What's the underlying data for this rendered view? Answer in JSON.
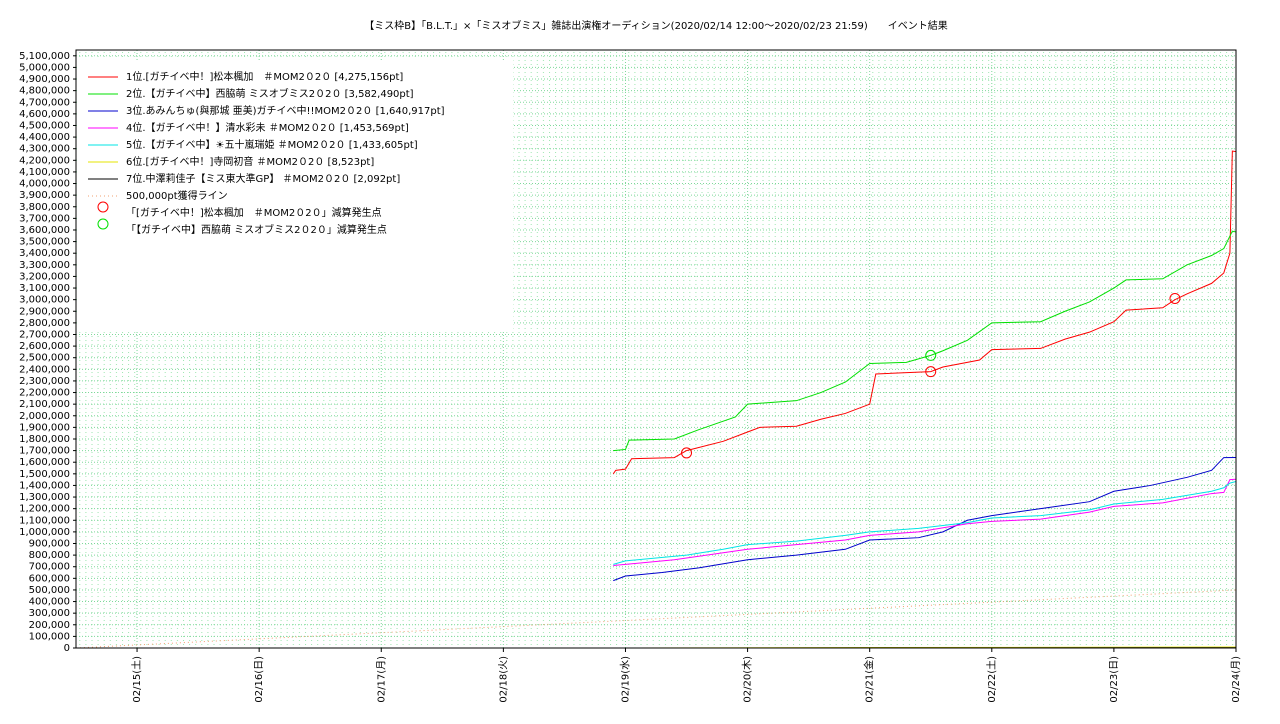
{
  "chart_data": {
    "type": "line",
    "title": "【ミス枠B】「B.L.T.」×「ミスオブミス」雑誌出演権オーディション(2020/02/14 12:00〜2020/02/23 21:59)　　イベント結果",
    "xlim": [
      0.5,
      10.0
    ],
    "xticks": [
      {
        "value": 1,
        "label": "02/15(土)"
      },
      {
        "value": 2,
        "label": "02/16(日)"
      },
      {
        "value": 3,
        "label": "02/17(月)"
      },
      {
        "value": 4,
        "label": "02/18(火)"
      },
      {
        "value": 5,
        "label": "02/19(水)"
      },
      {
        "value": 6,
        "label": "02/20(木)"
      },
      {
        "value": 7,
        "label": "02/21(金)"
      },
      {
        "value": 8,
        "label": "02/22(土)"
      },
      {
        "value": 9,
        "label": "02/23(日)"
      },
      {
        "value": 10,
        "label": "02/24(月)"
      }
    ],
    "ylim": [
      0,
      5150000
    ],
    "yticks": [
      0,
      {
        "value": 100000,
        "label": "100,000"
      },
      {
        "value": 200000,
        "label": "200,000"
      },
      {
        "value": 300000,
        "label": "300,000"
      },
      {
        "value": 400000,
        "label": "400,000"
      },
      {
        "value": 500000,
        "label": "500,000"
      },
      {
        "value": 600000,
        "label": "600,000"
      },
      {
        "value": 700000,
        "label": "700,000"
      },
      {
        "value": 800000,
        "label": "800,000"
      },
      {
        "value": 900000,
        "label": "900,000"
      },
      {
        "value": 1000000,
        "label": "1,000,000"
      },
      {
        "value": 1100000,
        "label": "1,100,000"
      },
      {
        "value": 1200000,
        "label": "1,200,000"
      },
      {
        "value": 1300000,
        "label": "1,300,000"
      },
      {
        "value": 1400000,
        "label": "1,400,000"
      },
      {
        "value": 1500000,
        "label": "1,500,000"
      },
      {
        "value": 1600000,
        "label": "1,600,000"
      },
      {
        "value": 1700000,
        "label": "1,700,000"
      },
      {
        "value": 1800000,
        "label": "1,800,000"
      },
      {
        "value": 1900000,
        "label": "1,900,000"
      },
      {
        "value": 2000000,
        "label": "2,000,000"
      },
      {
        "value": 2100000,
        "label": "2,100,000"
      },
      {
        "value": 2200000,
        "label": "2,200,000"
      },
      {
        "value": 2300000,
        "label": "2,300,000"
      },
      {
        "value": 2400000,
        "label": "2,400,000"
      },
      {
        "value": 2500000,
        "label": "2,500,000"
      },
      {
        "value": 2600000,
        "label": "2,600,000"
      },
      {
        "value": 2700000,
        "label": "2,700,000"
      },
      {
        "value": 2800000,
        "label": "2,800,000"
      },
      {
        "value": 2900000,
        "label": "2,900,000"
      },
      {
        "value": 3000000,
        "label": "3,000,000"
      },
      {
        "value": 3100000,
        "label": "3,100,000"
      },
      {
        "value": 3200000,
        "label": "3,200,000"
      },
      {
        "value": 3300000,
        "label": "3,300,000"
      },
      {
        "value": 3400000,
        "label": "3,400,000"
      },
      {
        "value": 3500000,
        "label": "3,500,000"
      },
      {
        "value": 3600000,
        "label": "3,600,000"
      },
      {
        "value": 3700000,
        "label": "3,700,000"
      },
      {
        "value": 3800000,
        "label": "3,800,000"
      },
      {
        "value": 3900000,
        "label": "3,900,000"
      },
      {
        "value": 4000000,
        "label": "4,000,000"
      },
      {
        "value": 4100000,
        "label": "4,100,000"
      },
      {
        "value": 4200000,
        "label": "4,200,000"
      },
      {
        "value": 4300000,
        "label": "4,300,000"
      },
      {
        "value": 4400000,
        "label": "4,400,000"
      },
      {
        "value": 4500000,
        "label": "4,500,000"
      },
      {
        "value": 4600000,
        "label": "4,600,000"
      },
      {
        "value": 4700000,
        "label": "4,700,000"
      },
      {
        "value": 4800000,
        "label": "4,800,000"
      },
      {
        "value": 4900000,
        "label": "4,900,000"
      },
      {
        "value": 5000000,
        "label": "5,000,000"
      },
      {
        "value": 5100000,
        "label": "5,100,000"
      }
    ],
    "grid": true,
    "series": [
      {
        "name": "1位.[ガチイベ中！]松本楓加　＃MOM2０2０ [4,275,156pt]",
        "color": "#ff0000",
        "x": [
          4.9,
          4.92,
          5.0,
          5.05,
          5.4,
          5.5,
          5.8,
          6.0,
          6.1,
          6.4,
          6.6,
          6.8,
          7.0,
          7.05,
          7.5,
          7.6,
          7.9,
          8.0,
          8.4,
          8.6,
          8.8,
          9.0,
          9.1,
          9.4,
          9.5,
          9.6,
          9.8,
          9.9,
          9.95,
          9.97,
          10.0
        ],
        "values": [
          1500000,
          1530000,
          1540000,
          1630000,
          1640000,
          1700000,
          1780000,
          1860000,
          1900000,
          1910000,
          1970000,
          2020000,
          2100000,
          2360000,
          2380000,
          2420000,
          2480000,
          2570000,
          2580000,
          2660000,
          2720000,
          2810000,
          2910000,
          2930000,
          3000000,
          3050000,
          3140000,
          3230000,
          3400000,
          4280000,
          4275156
        ]
      },
      {
        "name": "2位.【ガチイベ中】西脇萌 ミスオブミス2０2０ [3,582,490pt]",
        "color": "#00e000",
        "x": [
          4.9,
          5.0,
          5.03,
          5.4,
          5.6,
          5.9,
          6.0,
          6.4,
          6.6,
          6.8,
          7.0,
          7.3,
          7.5,
          7.6,
          7.8,
          8.0,
          8.4,
          8.6,
          8.8,
          9.0,
          9.1,
          9.4,
          9.6,
          9.8,
          9.9,
          9.97,
          10.0
        ],
        "values": [
          1700000,
          1710000,
          1790000,
          1800000,
          1880000,
          1990000,
          2100000,
          2130000,
          2200000,
          2290000,
          2450000,
          2460000,
          2520000,
          2560000,
          2650000,
          2800000,
          2810000,
          2900000,
          2980000,
          3100000,
          3170000,
          3180000,
          3300000,
          3380000,
          3440000,
          3590000,
          3582490
        ]
      },
      {
        "name": "3位.あみんちゅ(與那城 亜美)ガチイベ中!!MOM2０2０ [1,640,917pt]",
        "color": "#0000cc",
        "x": [
          4.9,
          5.0,
          5.3,
          5.6,
          6.0,
          6.4,
          6.8,
          7.0,
          7.4,
          7.6,
          7.8,
          8.0,
          8.4,
          8.8,
          9.0,
          9.3,
          9.6,
          9.8,
          9.9,
          10.0
        ],
        "values": [
          580000,
          620000,
          650000,
          690000,
          760000,
          800000,
          850000,
          930000,
          950000,
          1000000,
          1100000,
          1140000,
          1200000,
          1260000,
          1350000,
          1400000,
          1470000,
          1530000,
          1640000,
          1640917
        ]
      },
      {
        "name": "4位.【ガチイベ中！】清水彩未 ＃MOM2０2０ [1,453,569pt]",
        "color": "#ff00ff",
        "x": [
          4.9,
          5.0,
          5.4,
          5.8,
          6.0,
          6.4,
          6.8,
          7.0,
          7.4,
          7.8,
          8.0,
          8.4,
          8.8,
          9.0,
          9.4,
          9.8,
          9.9,
          9.95,
          10.0
        ],
        "values": [
          710000,
          720000,
          760000,
          820000,
          850000,
          890000,
          930000,
          970000,
          1000000,
          1070000,
          1090000,
          1110000,
          1170000,
          1220000,
          1250000,
          1330000,
          1340000,
          1450000,
          1453569
        ]
      },
      {
        "name": "5位.【ガチイベ中】☀五十嵐瑞姫 ＃MOM2０2０ [1,433,605pt]",
        "color": "#00e5e5",
        "x": [
          4.9,
          5.0,
          5.5,
          5.8,
          6.0,
          6.4,
          6.8,
          7.0,
          7.4,
          7.8,
          8.0,
          8.4,
          8.8,
          9.0,
          9.4,
          9.8,
          9.9,
          9.95,
          10.0
        ],
        "values": [
          720000,
          750000,
          800000,
          850000,
          890000,
          920000,
          970000,
          1000000,
          1030000,
          1080000,
          1120000,
          1140000,
          1190000,
          1240000,
          1280000,
          1350000,
          1380000,
          1420000,
          1433605
        ]
      },
      {
        "name": "6位.[ガチイベ中！]寺岡初音 ＃MOM2０2０ [8,523pt]",
        "color": "#e5e500",
        "x": [
          4.9,
          10.0
        ],
        "values": [
          0,
          8523
        ]
      },
      {
        "name": "7位.中澤莉佳子【ミス東大準GP】 ＃MOM2０2０ [2,092pt]",
        "color": "#000000",
        "x": [
          4.9,
          10.0
        ],
        "values": [
          0,
          2092
        ]
      },
      {
        "name": "500,000pt獲得ライン",
        "color": "#f0a070",
        "style": "dotted",
        "x": [
          0.5,
          10.0
        ],
        "values": [
          0,
          500000
        ]
      }
    ],
    "markers": [
      {
        "name": "「[ガチイベ中！]松本楓加　＃MOM2０2０」減算発生点",
        "color": "#ff0000",
        "x": [
          5.5,
          7.5,
          9.5
        ],
        "values": [
          1680000,
          2380000,
          3010000
        ]
      },
      {
        "name": "「【ガチイベ中】西脇萌 ミスオブミス2０2０」減算発生点",
        "color": "#00e000",
        "x": [
          7.5
        ],
        "values": [
          2520000
        ]
      }
    ]
  }
}
